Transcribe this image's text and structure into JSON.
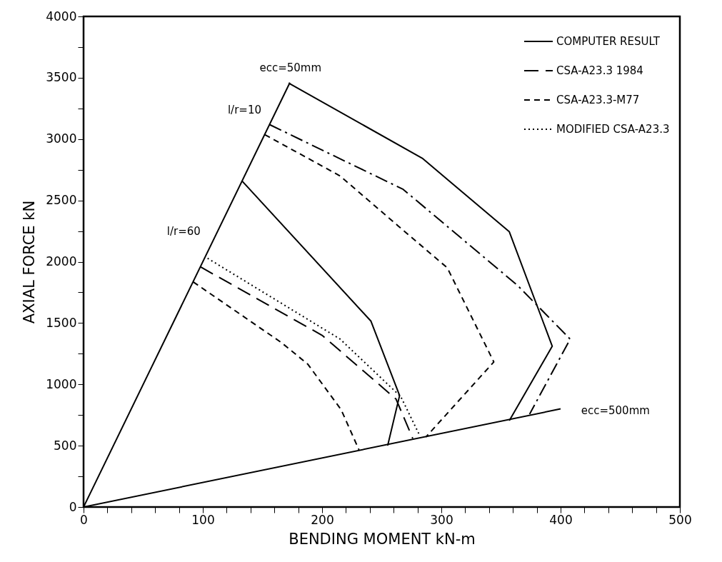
{
  "chart_data": {
    "type": "line",
    "xlabel": "BENDING MOMENT kN-m",
    "ylabel": "AXIAL FORCE kN",
    "xlim": [
      0,
      500
    ],
    "ylim": [
      0,
      4000
    ],
    "xticks": [
      0,
      {
        "value": 20,
        "label": null
      },
      {
        "value": 40,
        "label": null
      },
      {
        "value": 60,
        "label": null
      },
      {
        "value": 80,
        "label": null
      },
      100,
      {
        "value": 120,
        "label": null
      },
      {
        "value": 140,
        "label": null
      },
      {
        "value": 160,
        "label": null
      },
      {
        "value": 180,
        "label": null
      },
      200,
      {
        "value": 220,
        "label": null
      },
      {
        "value": 240,
        "label": null
      },
      {
        "value": 260,
        "label": null
      },
      {
        "value": 280,
        "label": null
      },
      300,
      {
        "value": 320,
        "label": null
      },
      {
        "value": 340,
        "label": null
      },
      {
        "value": 360,
        "label": null
      },
      {
        "value": 380,
        "label": null
      },
      400,
      {
        "value": 420,
        "label": null
      },
      {
        "value": 440,
        "label": null
      },
      {
        "value": 460,
        "label": null
      },
      {
        "value": 480,
        "label": null
      },
      500
    ],
    "yticks": [
      0,
      {
        "value": 250,
        "label": null
      },
      500,
      {
        "value": 750,
        "label": null
      },
      1000,
      {
        "value": 1250,
        "label": null
      },
      1500,
      {
        "value": 1750,
        "label": null
      },
      2000,
      {
        "value": 2250,
        "label": null
      },
      2500,
      {
        "value": 2750,
        "label": null
      },
      3000,
      {
        "value": 3250,
        "label": null
      },
      3500,
      {
        "value": 3750,
        "label": null
      },
      4000
    ],
    "grid": false,
    "legend": "top right",
    "series": [
      {
        "name": "COMPUTER RESULT",
        "color": "#000000",
        "line_style": "solid",
        "x": [
          172,
          284,
          357,
          393,
          357
        ],
        "values": [
          3456,
          2844,
          2244,
          1311,
          705
        ]
      },
      {
        "color": "#000000",
        "line_style": "dashdot",
        "x": [
          156,
          268,
          364,
          408,
          374
        ],
        "values": [
          3118,
          2590,
          1806,
          1369,
          757
        ]
      },
      {
        "name": "CSA-A23.3 1984",
        "color": "#000000",
        "line_style": "longdashed",
        "x": [
          98,
          200,
          262,
          276
        ],
        "values": [
          1958,
          1400,
          880,
          560
        ]
      },
      {
        "name": "CSA-A23.3-M77",
        "color": "#000000",
        "line_style": "dashed",
        "x": [
          152,
          215,
          264,
          305,
          344,
          287
        ],
        "values": [
          3036,
          2700,
          2290,
          1950,
          1183,
          570
        ]
      },
      {
        "color": "#000000",
        "line_style": "solid",
        "x": [
          133,
          241,
          265,
          255
        ],
        "values": [
          2657,
          1515,
          909,
          501
        ]
      },
      {
        "color": "#000000",
        "line_style": "dashed",
        "x": [
          92,
          166,
          188,
          216,
          231
        ],
        "values": [
          1835,
          1340,
          1165,
          793,
          465
        ]
      },
      {
        "name": "MODIFIED CSA-A23.3",
        "color": "#000000",
        "line_style": "dotted",
        "x": [
          104,
          215,
          266,
          282
        ],
        "values": [
          2028,
          1370,
          900,
          580
        ]
      },
      {
        "color": "#000000",
        "line_style": "solid",
        "x": [
          0,
          173
        ],
        "values": [
          0,
          3460
        ]
      },
      {
        "color": "#000000",
        "line_style": "solid",
        "x": [
          0,
          400
        ],
        "values": [
          0,
          800
        ]
      }
    ],
    "annotations": [
      "ecc=50mm",
      "l/r=10",
      "l/r=60",
      "ecc=500mm"
    ]
  }
}
